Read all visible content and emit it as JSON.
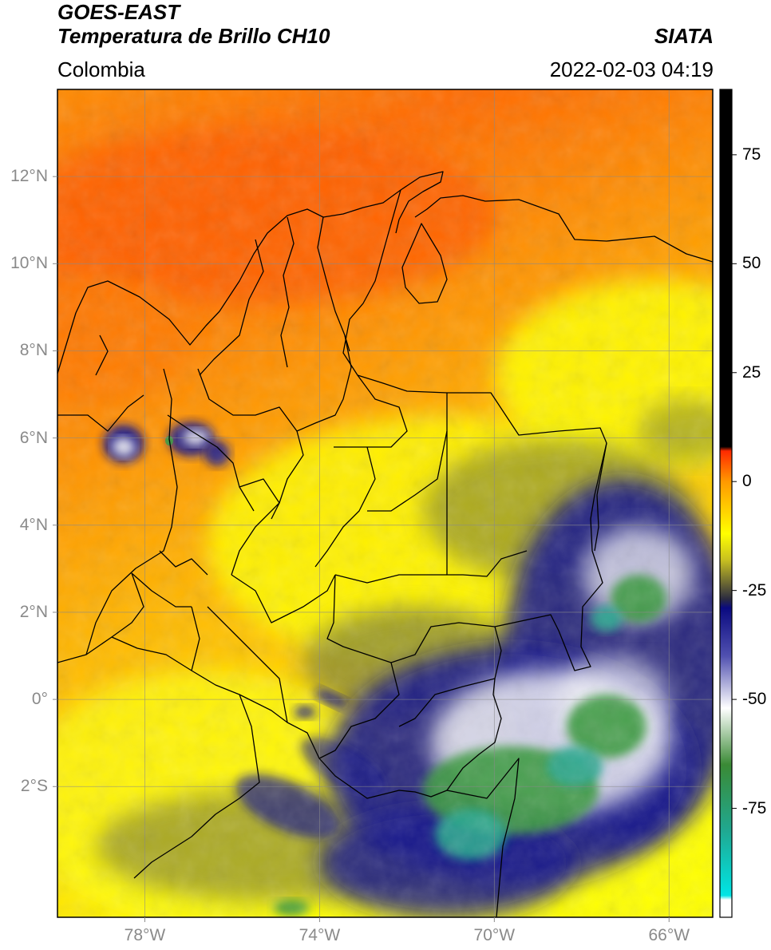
{
  "header": {
    "satellite": "GOES-EAST",
    "product": "Temperatura de Brillo CH10",
    "agency": "SIATA",
    "region": "Colombia",
    "timestamp": "2022-02-03 04:19"
  },
  "map": {
    "extent": {
      "lon_min": -80,
      "lon_max": -65,
      "lat_min": -5,
      "lat_max": 14
    },
    "lat_ticks": [
      {
        "value": 12,
        "label": "12°N"
      },
      {
        "value": 10,
        "label": "10°N"
      },
      {
        "value": 8,
        "label": "8°N"
      },
      {
        "value": 6,
        "label": "6°N"
      },
      {
        "value": 4,
        "label": "4°N"
      },
      {
        "value": 2,
        "label": "2°N"
      },
      {
        "value": 0,
        "label": "0°"
      },
      {
        "value": -2,
        "label": "2°S"
      }
    ],
    "lon_ticks": [
      {
        "value": -78,
        "label": "78°W"
      },
      {
        "value": -74,
        "label": "74°W"
      },
      {
        "value": -70,
        "label": "70°W"
      },
      {
        "value": -66,
        "label": "66°W"
      }
    ],
    "grid": true
  },
  "colorbar": {
    "range": [
      -100,
      90
    ],
    "ticks": [
      {
        "value": 75,
        "label": "75"
      },
      {
        "value": 50,
        "label": "50"
      },
      {
        "value": 25,
        "label": "25"
      },
      {
        "value": 0,
        "label": "0"
      },
      {
        "value": -25,
        "label": "-25"
      },
      {
        "value": -50,
        "label": "-50"
      },
      {
        "value": -75,
        "label": "-75"
      }
    ],
    "stops": [
      {
        "value": -100,
        "color": "#ffffff"
      },
      {
        "value": -96,
        "color": "#ffffff"
      },
      {
        "value": -95,
        "color": "#00e5e5"
      },
      {
        "value": -80,
        "color": "#20a890"
      },
      {
        "value": -65,
        "color": "#3a8a35"
      },
      {
        "value": -52,
        "color": "#ffffff"
      },
      {
        "value": -40,
        "color": "#5050b0"
      },
      {
        "value": -29,
        "color": "#0a0a80"
      },
      {
        "value": -27,
        "color": "#2a2a40"
      },
      {
        "value": -18,
        "color": "#c8c020"
      },
      {
        "value": -12,
        "color": "#ffff00"
      },
      {
        "value": 0,
        "color": "#ff9900"
      },
      {
        "value": 7,
        "color": "#ff2a00"
      },
      {
        "value": 8,
        "color": "#000000"
      },
      {
        "value": 90,
        "color": "#000000"
      }
    ]
  },
  "legend_colors": {
    "warm_sea": "#ff6a00",
    "land_orange": "#ff9a00",
    "yellow": "#ffff00",
    "olive": "#9a9a2a",
    "deep_convection": "#14148c",
    "cold_white": "#ffffff",
    "green": "#3a9a40",
    "teal": "#2aa890"
  }
}
